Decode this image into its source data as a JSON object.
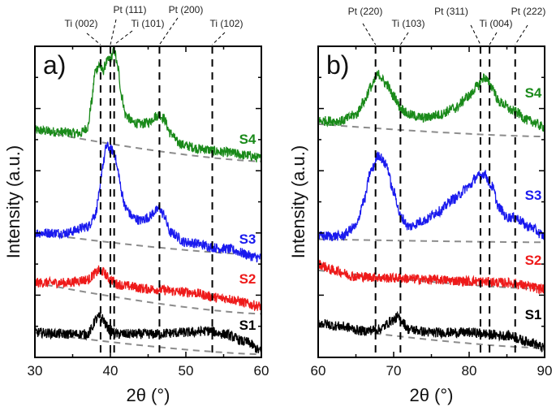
{
  "chart_data": [
    {
      "type": "line",
      "panel_label": "a)",
      "xlabel": "2θ (°)",
      "ylabel": "Intensity (a.u.)",
      "xlim": [
        30,
        60
      ],
      "ylim": [
        0,
        100
      ],
      "xticks": [
        30,
        40,
        50,
        60
      ],
      "y_tick_labels_shown": false,
      "grid": false,
      "reference_lines": [
        {
          "label": "Ti (002)",
          "x": 38.7
        },
        {
          "label": "Pt (111)",
          "x": 40.0
        },
        {
          "label": "Ti (101)",
          "x": 40.5
        },
        {
          "label": "Pt (200)",
          "x": 46.5
        },
        {
          "label": "Ti (102)",
          "x": 53.5
        }
      ],
      "series": [
        {
          "name": "S4",
          "color": "#1a8a1a",
          "x": [
            30,
            33,
            36,
            37,
            37.5,
            38,
            38.5,
            39,
            39.5,
            40,
            40.5,
            41,
            41.5,
            42,
            43,
            44,
            45,
            46,
            46.5,
            47,
            48,
            49,
            50,
            52,
            55,
            58,
            60
          ],
          "y": [
            73,
            72.5,
            72,
            74,
            82,
            92,
            94,
            92,
            95,
            96,
            99,
            93,
            84,
            78,
            75.5,
            75,
            75.5,
            77.5,
            78,
            77,
            72,
            69,
            68,
            67,
            66,
            65,
            64
          ],
          "baseline": [
            73,
            63
          ]
        },
        {
          "name": "S3",
          "color": "#1a1aee",
          "x": [
            30,
            34,
            37,
            38,
            38.5,
            39,
            39.5,
            40,
            40.5,
            41,
            41.5,
            42,
            43,
            44,
            45,
            46,
            46.5,
            47,
            48,
            50,
            55,
            60
          ],
          "y": [
            40,
            40,
            42,
            46,
            52,
            62,
            68,
            67,
            66,
            60,
            53,
            48,
            45,
            44,
            45,
            47,
            48,
            46,
            40,
            37,
            35,
            32
          ],
          "baseline": [
            40,
            33
          ]
        },
        {
          "name": "S2",
          "color": "#ee1a1a",
          "x": [
            30,
            34,
            37,
            38,
            38.5,
            39,
            40,
            41,
            42,
            45,
            50,
            55,
            60
          ],
          "y": [
            24,
            24,
            25,
            27,
            28,
            27.5,
            25,
            23.5,
            23,
            22,
            21,
            19,
            16.5
          ],
          "baseline": [
            24,
            14
          ]
        },
        {
          "name": "S1",
          "color": "#000000",
          "x": [
            30,
            34,
            37,
            37.5,
            38,
            38.5,
            39,
            39.5,
            40,
            41,
            42,
            45,
            50,
            53,
            55,
            58,
            60
          ],
          "y": [
            8,
            7.5,
            7.5,
            9,
            12,
            13,
            12.5,
            10,
            8.5,
            7.5,
            7.5,
            7.5,
            8,
            8.5,
            7.5,
            5,
            2
          ],
          "baseline": [
            8,
            1
          ]
        }
      ]
    },
    {
      "type": "line",
      "panel_label": "b)",
      "xlabel": "2θ (°)",
      "ylabel": "Intensity (a.u.)",
      "xlim": [
        60,
        90
      ],
      "ylim": [
        0,
        100
      ],
      "xticks": [
        60,
        70,
        80,
        90
      ],
      "y_tick_labels_shown": false,
      "grid": false,
      "reference_lines": [
        {
          "label": "Pt (220)",
          "x": 67.6
        },
        {
          "label": "Ti (103)",
          "x": 70.9
        },
        {
          "label": "Pt (311)",
          "x": 81.5
        },
        {
          "label": "Ti (004)",
          "x": 82.7
        },
        {
          "label": "Pt (222)",
          "x": 86.1
        }
      ],
      "series": [
        {
          "name": "S4",
          "color": "#1a8a1a",
          "x": [
            60,
            63,
            65,
            66,
            67,
            68,
            69,
            70,
            71,
            72,
            74,
            76,
            78,
            80,
            81,
            82,
            83,
            84,
            86,
            88,
            90
          ],
          "y": [
            76,
            76,
            78,
            82,
            87,
            91,
            88,
            84,
            80,
            78,
            77,
            78,
            80,
            84,
            87,
            90,
            87,
            82,
            79,
            76,
            74
          ],
          "baseline": [
            75,
            71
          ]
        },
        {
          "name": "S3",
          "color": "#1a1aee",
          "x": [
            60,
            63,
            65,
            66,
            67,
            68,
            69,
            70,
            71,
            72,
            74,
            76,
            78,
            80,
            81,
            82,
            83,
            84,
            85,
            86,
            88,
            90
          ],
          "y": [
            39,
            39,
            42,
            50,
            60,
            65,
            62,
            53,
            45,
            42,
            44,
            47,
            51,
            55,
            58,
            59,
            55,
            48,
            45,
            45,
            42,
            39
          ],
          "baseline": [
            38,
            37
          ]
        },
        {
          "name": "S2",
          "color": "#ee1a1a",
          "x": [
            60,
            62,
            65,
            70,
            75,
            80,
            85,
            90
          ],
          "y": [
            30,
            28,
            26,
            25.5,
            25,
            24.5,
            24,
            22
          ],
          "baseline": [
            28,
            22
          ]
        },
        {
          "name": "S1",
          "color": "#000000",
          "x": [
            60,
            63,
            66,
            68,
            70,
            70.5,
            71,
            72,
            75,
            80,
            85,
            88,
            90
          ],
          "y": [
            11,
            10,
            8.5,
            9,
            12,
            13,
            12,
            9,
            8,
            8,
            7,
            5,
            3
          ],
          "baseline": [
            10,
            3
          ]
        }
      ]
    }
  ],
  "colors": {
    "baseline": "#8c8c8c",
    "reference_line": "#000000"
  }
}
